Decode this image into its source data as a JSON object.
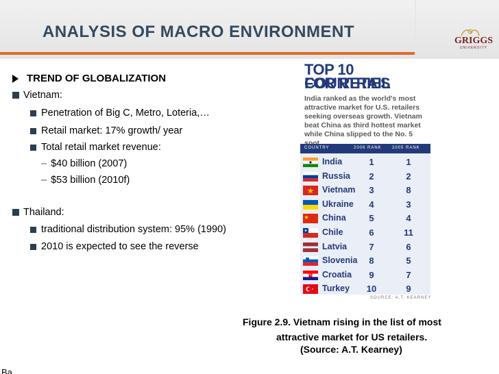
{
  "title": "ANALYSIS OF MACRO ENVIRONMENT",
  "logo": {
    "name": "GRIGGS",
    "sub": "UNIVERSITY"
  },
  "content": {
    "heading": "TREND OF GLOBALIZATION",
    "vietnam": {
      "label": "Vietnam:",
      "items": [
        "Penetration of Big C, Metro, Loteria,…",
        "Retail market: 17% growth/ year",
        "Total retail market revenue:"
      ],
      "revenue": [
        "$40 billion (2007)",
        "$53 billion (2010f)"
      ]
    },
    "thailand": {
      "label": "Thailand:",
      "items": [
        "traditional distribution system: 95% (1990)",
        "2010 is expected to see the reverse"
      ]
    }
  },
  "graphic": {
    "title_line1": "TOP 10 COUNTRIES",
    "title_line2": "FOR RETAIL",
    "description": "India ranked as the world's most attractive market for U.S. retailers seeking overseas growth. Vietnam beat China as third hottest market while China slipped to the No. 5 spot.",
    "headers": {
      "country": "COUNTRY",
      "rank2006": "2006 RANK",
      "rank2005": "2005 RANK"
    },
    "rows": [
      {
        "country": "India",
        "rank2006": "1",
        "rank2005": "1"
      },
      {
        "country": "Russia",
        "rank2006": "2",
        "rank2005": "2"
      },
      {
        "country": "Vietnam",
        "rank2006": "3",
        "rank2005": "8"
      },
      {
        "country": "Ukraine",
        "rank2006": "4",
        "rank2005": "3"
      },
      {
        "country": "China",
        "rank2006": "5",
        "rank2005": "4"
      },
      {
        "country": "Chile",
        "rank2006": "6",
        "rank2005": "11"
      },
      {
        "country": "Latvia",
        "rank2006": "7",
        "rank2005": "6"
      },
      {
        "country": "Slovenia",
        "rank2006": "8",
        "rank2005": "5"
      },
      {
        "country": "Croatia",
        "rank2006": "9",
        "rank2005": "7"
      },
      {
        "country": "Turkey",
        "rank2006": "10",
        "rank2005": "9"
      }
    ],
    "source": "SOURCE: A.T. KEARNEY"
  },
  "caption": {
    "line1": "Figure 2.9. Vietnam rising in the list of most",
    "line2": "attractive market for US retailers.",
    "line3": "(Source: A.T. Kearney)"
  },
  "footer": "Ba",
  "colors": {
    "title": "#34495e",
    "accent": "#e06a2a",
    "graphic_blue": "#233a7a"
  }
}
